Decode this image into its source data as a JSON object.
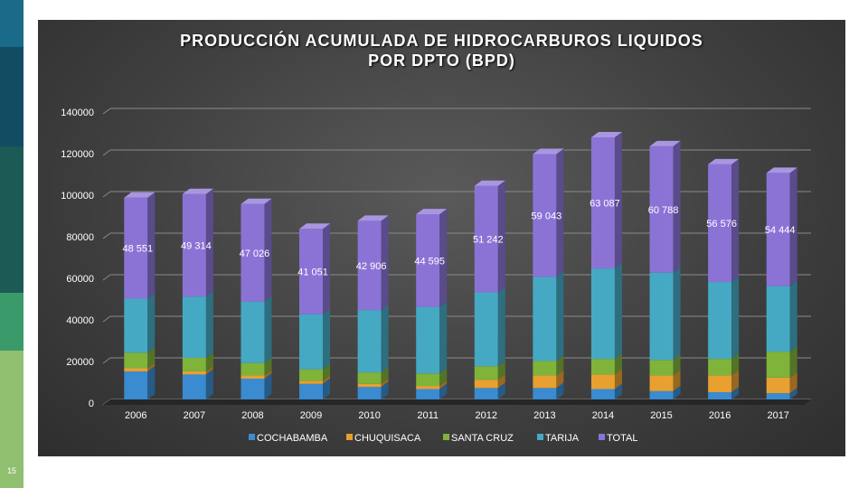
{
  "slide": {
    "page_number": "15"
  },
  "chart_data": {
    "type": "bar",
    "stacked": true,
    "title_line1": "PRODUCCIÓN ACUMULADA DE HIDROCARBUROS LIQUIDOS",
    "title_line2": "POR DPTO (BPD)",
    "categories": [
      "2006",
      "2007",
      "2008",
      "2009",
      "2010",
      "2011",
      "2012",
      "2013",
      "2014",
      "2015",
      "2016",
      "2017"
    ],
    "ylim": [
      0,
      140000
    ],
    "yticks": [
      "0",
      "20000",
      "40000",
      "60000",
      "80000",
      "100000",
      "120000",
      "140000"
    ],
    "legend_position": "bottom",
    "series": [
      {
        "name": "COCHABAMBA",
        "color": "#3a8bd0",
        "values": [
          13500,
          12000,
          10000,
          7500,
          6000,
          5000,
          5500,
          5500,
          5000,
          4000,
          3500,
          3000
        ]
      },
      {
        "name": "CHUQUISACA",
        "color": "#e8a030",
        "values": [
          1500,
          1500,
          1500,
          1500,
          1500,
          1500,
          4000,
          6000,
          7000,
          7500,
          8000,
          7500
        ]
      },
      {
        "name": "SANTA CRUZ",
        "color": "#7fb33a",
        "values": [
          7500,
          6500,
          6000,
          5500,
          5500,
          6000,
          6500,
          7000,
          7500,
          7500,
          8000,
          12500
        ]
      },
      {
        "name": "TARIJA",
        "color": "#45a9c4",
        "values": [
          26000,
          29500,
          29500,
          26500,
          30000,
          32000,
          35500,
          40500,
          43500,
          42000,
          37000,
          31500
        ]
      },
      {
        "name": "TOTAL",
        "color": "#8b73d6",
        "values": [
          48551,
          49314,
          47026,
          41051,
          42906,
          44595,
          51242,
          59043,
          63087,
          60788,
          56576,
          54444
        ],
        "labels": [
          "48 551",
          "49 314",
          "47 026",
          "41 051",
          "42 906",
          "44 595",
          "51 242",
          "59 043",
          "63 087",
          "60 788",
          "56 576",
          "54 444"
        ]
      }
    ]
  }
}
